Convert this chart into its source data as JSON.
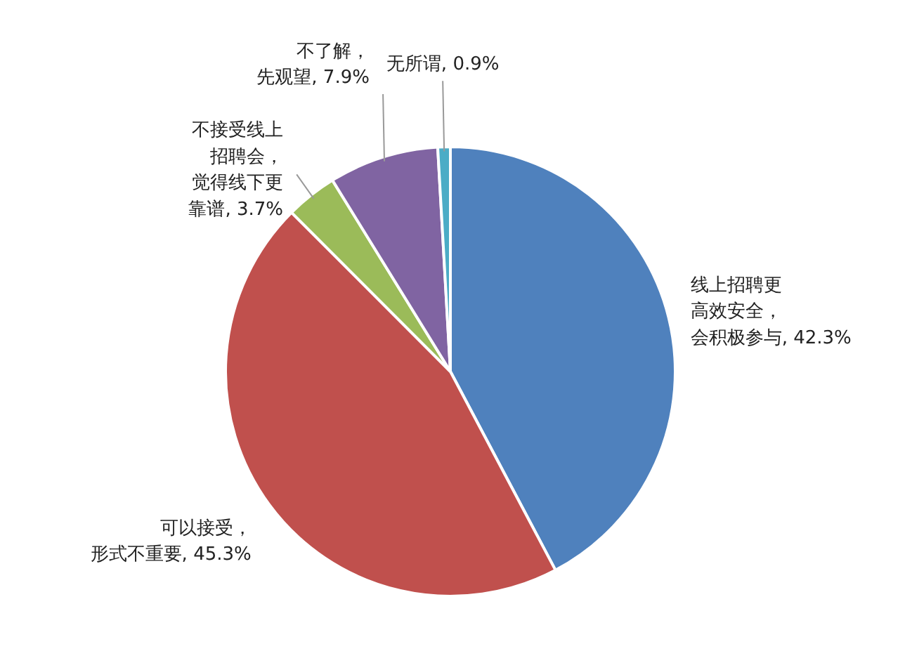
{
  "chart_data": {
    "type": "pie",
    "categories": [
      "线上招聘更高效安全，会积极参与",
      "可以接受，形式不重要",
      "不接受线上招聘会，觉得线下更靠谱",
      "不了解，先观望",
      "无所谓"
    ],
    "values": [
      42.3,
      45.3,
      3.7,
      7.9,
      0.9
    ],
    "value_labels": [
      "42.3%",
      "45.3%",
      "3.7%",
      "7.9%",
      "0.9%"
    ],
    "colors": [
      "#4f81bd",
      "#c0504d",
      "#9bbb59",
      "#8064a2",
      "#4bacc6"
    ]
  }
}
